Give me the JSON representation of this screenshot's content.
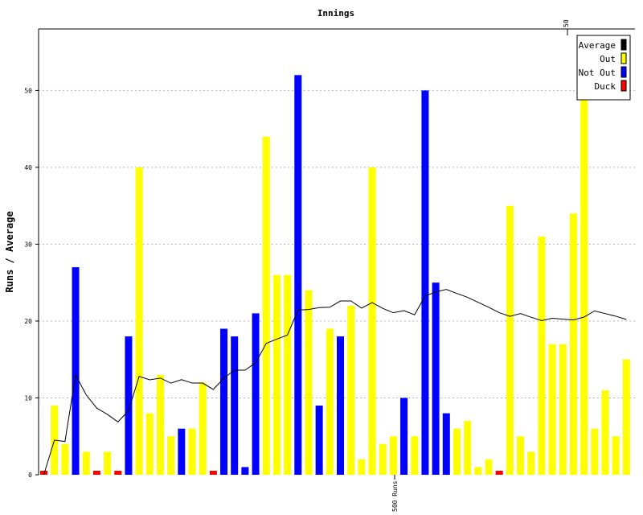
{
  "chart_data": {
    "type": "bar",
    "title": "Innings",
    "ylabel": "Runs / Average",
    "xlabel": "",
    "ylim": [
      0,
      58
    ],
    "yticks": [
      "0",
      "10",
      "20",
      "30",
      "40",
      "50"
    ],
    "grid": true,
    "legend_position": "top-right",
    "top_marker": "50",
    "bottom_marker": "500 Runs",
    "legend": [
      {
        "label": "Average",
        "color": "#000000"
      },
      {
        "label": "Out",
        "color": "#ffff00"
      },
      {
        "label": "Not Out",
        "color": "#0000ff"
      },
      {
        "label": "Duck",
        "color": "#ff0000"
      }
    ],
    "series": [
      {
        "name": "Runs",
        "values": [
          0,
          9,
          4,
          27,
          3,
          0,
          3,
          0,
          18,
          40,
          8,
          13,
          5,
          6,
          6,
          12,
          0,
          19,
          18,
          1,
          21,
          44,
          26,
          26,
          52,
          24,
          9,
          19,
          18,
          22,
          2,
          40,
          4,
          5,
          10,
          5,
          50,
          25,
          8,
          6,
          7,
          1,
          2,
          0,
          35,
          5,
          3,
          31,
          17,
          17,
          34,
          50,
          6,
          11,
          5,
          15
        ],
        "status": [
          "duck",
          "out",
          "out",
          "notout",
          "out",
          "duck",
          "out",
          "duck",
          "notout",
          "out",
          "out",
          "out",
          "out",
          "notout",
          "out",
          "out",
          "duck",
          "notout",
          "notout",
          "notout",
          "notout",
          "out",
          "out",
          "out",
          "notout",
          "out",
          "notout",
          "out",
          "notout",
          "out",
          "out",
          "out",
          "out",
          "out",
          "notout",
          "out",
          "notout",
          "notout",
          "notout",
          "out",
          "out",
          "out",
          "out",
          "duck",
          "out",
          "out",
          "out",
          "out",
          "out",
          "out",
          "out",
          "out",
          "out",
          "out",
          "out",
          "out"
        ]
      },
      {
        "name": "Average",
        "values": [
          0,
          4.5,
          4.33,
          13,
          10.4,
          8.67,
          7.86,
          6.88,
          8.33,
          12.8,
          12.36,
          12.58,
          11.92,
          12.38,
          11.93,
          11.93,
          11.1,
          12.56,
          13.61,
          13.61,
          14.56,
          17.1,
          17.65,
          18.18,
          21.42,
          21.5,
          21.75,
          21.8,
          22.61,
          22.62,
          21.68,
          22.4,
          21.65,
          21.08,
          21.36,
          20.81,
          23.27,
          23.78,
          24.12,
          23.59,
          23.09,
          22.44,
          21.8,
          21.09,
          20.61,
          20.97,
          20.5,
          20.05,
          20.36,
          20.24,
          20.14,
          20.52,
          21.32,
          20.97,
          20.63,
          20.21
        ]
      }
    ]
  }
}
